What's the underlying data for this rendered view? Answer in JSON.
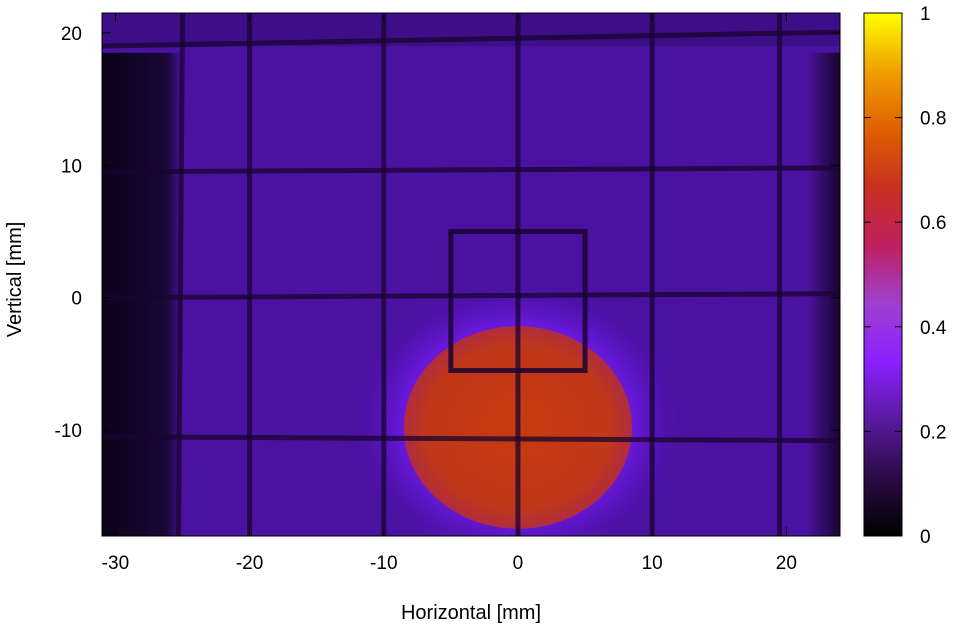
{
  "chart_data": {
    "type": "heatmap",
    "title": "",
    "xlabel": "Horizontal [mm]",
    "ylabel": "Vertical [mm]",
    "xlim": [
      -31,
      24
    ],
    "ylim": [
      -18,
      21.5
    ],
    "xticks": [
      -30,
      -20,
      -10,
      0,
      10,
      20
    ],
    "yticks": [
      -10,
      0,
      10,
      20
    ],
    "colorbar": {
      "range": [
        0,
        1
      ],
      "ticks": [
        "0",
        "0.2",
        "0.4",
        "0.6",
        "0.8",
        "1"
      ],
      "colormap": [
        "#000000",
        "#2a0a45",
        "#5a1aa0",
        "#8a20ff",
        "#a040d0",
        "#c02060",
        "#c83020",
        "#e06000",
        "#f0a000",
        "#ffff00"
      ]
    },
    "background_level": 0.12,
    "features": {
      "grid_lines_x": [
        -25,
        -20,
        -10,
        0,
        10,
        19.5
      ],
      "grid_lines_y": [
        19,
        9.5,
        0,
        -10.5
      ],
      "inner_box": {
        "x": [
          -5,
          5
        ],
        "y": [
          -5.5,
          5
        ]
      },
      "hot_spot": {
        "center": [
          0,
          -9.5
        ],
        "half_width": 8.5,
        "half_height": 7.5,
        "peak": 0.5
      },
      "dark_edges": {
        "left_x_max": -25,
        "right_x_min": 23
      }
    }
  }
}
